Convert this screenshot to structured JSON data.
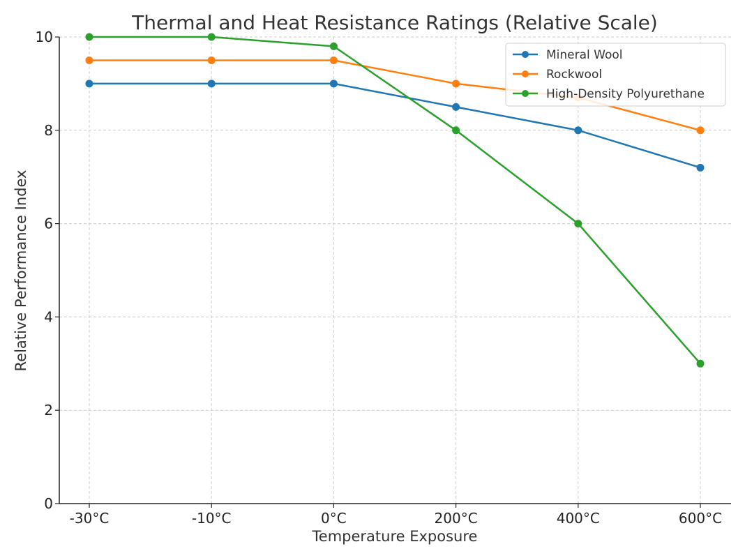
{
  "chart_data": {
    "type": "line",
    "title": "Thermal and Heat Resistance Ratings (Relative Scale)",
    "xlabel": "Temperature Exposure",
    "ylabel": "Relative Performance Index",
    "categories": [
      "-30°C",
      "-10°C",
      "0°C",
      "200°C",
      "400°C",
      "600°C"
    ],
    "ylim": [
      0,
      10
    ],
    "yticks": [
      0,
      2,
      4,
      6,
      8,
      10
    ],
    "grid": true,
    "legend_position": "top-right",
    "series": [
      {
        "name": "Mineral Wool",
        "color": "#1f77b4",
        "values": [
          9,
          9,
          9,
          8.5,
          8,
          7.2
        ]
      },
      {
        "name": "Rockwool",
        "color": "#ff7f0e",
        "values": [
          9.5,
          9.5,
          9.5,
          9,
          8.7,
          8
        ]
      },
      {
        "name": "High-Density Polyurethane",
        "color": "#2ca02c",
        "values": [
          10,
          10,
          9.8,
          8,
          6,
          3
        ]
      }
    ]
  }
}
